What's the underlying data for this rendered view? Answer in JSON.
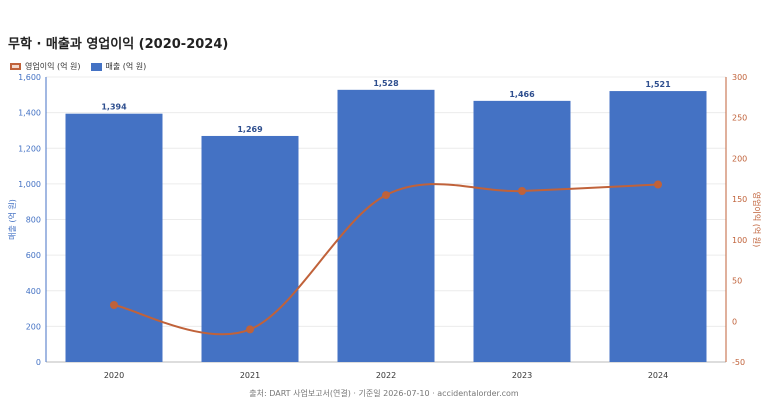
{
  "chart_data": {
    "type": "bar+line",
    "title": "무학 · 매출과 영업이익 (2020-2024)",
    "categories": [
      "2020",
      "2021",
      "2022",
      "2023",
      "2024"
    ],
    "series": [
      {
        "name": "매출 (억 원)",
        "type": "bar",
        "axis": "left",
        "values": [
          1394,
          1269,
          1528,
          1466,
          1521
        ],
        "labels": [
          "1,394",
          "1,269",
          "1,528",
          "1,466",
          "1,521"
        ]
      },
      {
        "name": "영업이익 (억 원)",
        "type": "line",
        "axis": "right",
        "values": [
          20,
          -10,
          155,
          160,
          168
        ]
      }
    ],
    "y_left": {
      "label": "매출 (억 원)",
      "min": 0,
      "max": 1600,
      "ticks": [
        0,
        200,
        400,
        600,
        800,
        1000,
        1200,
        1400,
        1600
      ],
      "tick_labels": [
        "0",
        "200",
        "400",
        "600",
        "800",
        "1,000",
        "1,200",
        "1,400",
        "1,600"
      ]
    },
    "y_right": {
      "label": "영업이익 (억 원)",
      "min": -50,
      "max": 300,
      "ticks": [
        -50,
        0,
        50,
        100,
        150,
        200,
        250,
        300
      ],
      "tick_labels": [
        "-50",
        "0",
        "50",
        "100",
        "150",
        "200",
        "250",
        "300"
      ]
    },
    "legend_position": "top-left",
    "grid": true,
    "colors": {
      "bar": "#4472c4",
      "line": "#c0623a"
    }
  },
  "source": "출처: DART 사업보고서(연결) · 기준일 2026-07-10 · accidentalorder.com"
}
